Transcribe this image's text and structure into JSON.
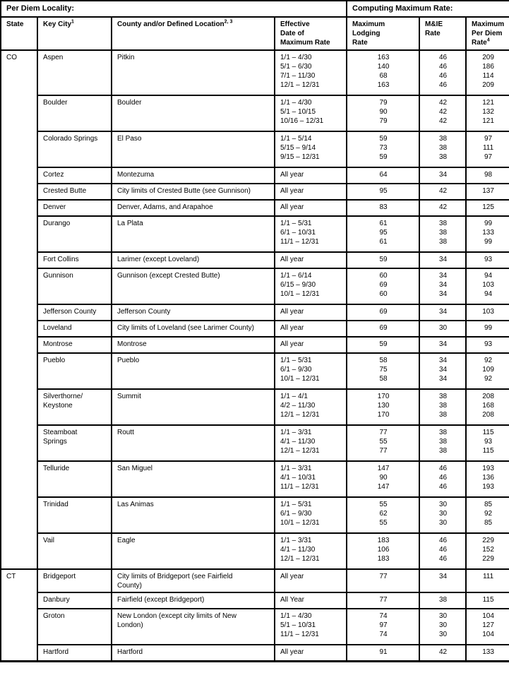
{
  "header": {
    "per_diem_locality": "Per Diem Locality:",
    "computing_maximum_rate": "Computing Maximum Rate:",
    "columns": [
      {
        "lines": [
          "State"
        ],
        "sup": null
      },
      {
        "lines": [
          "Key City"
        ],
        "sup": "1"
      },
      {
        "lines": [
          "County and/or Defined Location"
        ],
        "sup": "2, 3"
      },
      {
        "lines": [
          "Effective",
          "Date of",
          "Maximum Rate"
        ],
        "sup": null
      },
      {
        "lines": [
          "Maximum",
          "Lodging",
          "Rate"
        ],
        "sup": null
      },
      {
        "lines": [
          "M&IE",
          "Rate"
        ],
        "sup": null
      },
      {
        "lines": [
          "Maximum",
          "Per Diem",
          "Rate"
        ],
        "sup": "4"
      }
    ]
  },
  "groups": [
    {
      "state": "CO",
      "rows": [
        {
          "city": [
            "Aspen"
          ],
          "county": [
            "Pitkin"
          ],
          "dates": [
            "1/1 – 4/30",
            "5/1 – 6/30",
            "7/1 – 11/30",
            "12/1 – 12/31"
          ],
          "lodging": [
            163,
            140,
            68,
            163
          ],
          "mie": [
            46,
            46,
            46,
            46
          ],
          "per_diem": [
            209,
            186,
            114,
            209
          ]
        },
        {
          "city": [
            "Boulder"
          ],
          "county": [
            "Boulder"
          ],
          "dates": [
            "1/1 – 4/30",
            "5/1 – 10/15",
            "10/16 – 12/31"
          ],
          "lodging": [
            79,
            90,
            79
          ],
          "mie": [
            42,
            42,
            42
          ],
          "per_diem": [
            121,
            132,
            121
          ]
        },
        {
          "city": [
            "Colorado Springs"
          ],
          "county": [
            "El Paso"
          ],
          "dates": [
            "1/1 – 5/14",
            "5/15 – 9/14",
            "9/15 – 12/31"
          ],
          "lodging": [
            59,
            73,
            59
          ],
          "mie": [
            38,
            38,
            38
          ],
          "per_diem": [
            97,
            111,
            97
          ]
        },
        {
          "city": [
            "Cortez"
          ],
          "county": [
            "Montezuma"
          ],
          "dates": [
            "All year"
          ],
          "lodging": [
            64
          ],
          "mie": [
            34
          ],
          "per_diem": [
            98
          ]
        },
        {
          "city": [
            "Crested Butte"
          ],
          "county": [
            "City limits of Crested Butte (see Gunnison)"
          ],
          "dates": [
            "All year"
          ],
          "lodging": [
            95
          ],
          "mie": [
            42
          ],
          "per_diem": [
            137
          ]
        },
        {
          "city": [
            "Denver"
          ],
          "county": [
            "Denver, Adams, and Arapahoe"
          ],
          "dates": [
            "All year"
          ],
          "lodging": [
            83
          ],
          "mie": [
            42
          ],
          "per_diem": [
            125
          ]
        },
        {
          "city": [
            "Durango"
          ],
          "county": [
            "La Plata"
          ],
          "dates": [
            "1/1 – 5/31",
            "6/1 – 10/31",
            "11/1 – 12/31"
          ],
          "lodging": [
            61,
            95,
            61
          ],
          "mie": [
            38,
            38,
            38
          ],
          "per_diem": [
            99,
            133,
            99
          ]
        },
        {
          "city": [
            "Fort Collins"
          ],
          "county": [
            "Larimer (except Loveland)"
          ],
          "dates": [
            "All year"
          ],
          "lodging": [
            59
          ],
          "mie": [
            34
          ],
          "per_diem": [
            93
          ]
        },
        {
          "city": [
            "Gunnison"
          ],
          "county": [
            "Gunnison (except Crested Butte)"
          ],
          "dates": [
            "1/1 – 6/14",
            "6/15 – 9/30",
            "10/1 – 12/31"
          ],
          "lodging": [
            60,
            69,
            60
          ],
          "mie": [
            34,
            34,
            34
          ],
          "per_diem": [
            94,
            103,
            94
          ]
        },
        {
          "city": [
            "Jefferson County"
          ],
          "county": [
            "Jefferson County"
          ],
          "dates": [
            "All year"
          ],
          "lodging": [
            69
          ],
          "mie": [
            34
          ],
          "per_diem": [
            103
          ]
        },
        {
          "city": [
            "Loveland"
          ],
          "county": [
            "City limits of Loveland (see Larimer County)"
          ],
          "dates": [
            "All year"
          ],
          "lodging": [
            69
          ],
          "mie": [
            30
          ],
          "per_diem": [
            99
          ]
        },
        {
          "city": [
            "Montrose"
          ],
          "county": [
            "Montrose"
          ],
          "dates": [
            "All year"
          ],
          "lodging": [
            59
          ],
          "mie": [
            34
          ],
          "per_diem": [
            93
          ]
        },
        {
          "city": [
            "Pueblo"
          ],
          "county": [
            "Pueblo"
          ],
          "dates": [
            "1/1 – 5/31",
            "6/1 – 9/30",
            "10/1 – 12/31"
          ],
          "lodging": [
            58,
            75,
            58
          ],
          "mie": [
            34,
            34,
            34
          ],
          "per_diem": [
            92,
            109,
            92
          ]
        },
        {
          "city": [
            "Silverthorne/",
            "Keystone"
          ],
          "county": [
            "Summit"
          ],
          "dates": [
            "1/1 – 4/1",
            "4/2 – 11/30",
            "12/1 – 12/31"
          ],
          "lodging": [
            170,
            130,
            170
          ],
          "mie": [
            38,
            38,
            38
          ],
          "per_diem": [
            208,
            168,
            208
          ]
        },
        {
          "city": [
            "Steamboat",
            "Springs"
          ],
          "county": [
            "Routt"
          ],
          "dates": [
            "1/1 – 3/31",
            "4/1 – 11/30",
            "12/1 – 12/31"
          ],
          "lodging": [
            77,
            55,
            77
          ],
          "mie": [
            38,
            38,
            38
          ],
          "per_diem": [
            115,
            93,
            115
          ]
        },
        {
          "city": [
            "Telluride"
          ],
          "county": [
            "San Miguel"
          ],
          "dates": [
            "1/1 – 3/31",
            "4/1 – 10/31",
            "11/1 – 12/31"
          ],
          "lodging": [
            147,
            90,
            147
          ],
          "mie": [
            46,
            46,
            46
          ],
          "per_diem": [
            193,
            136,
            193
          ]
        },
        {
          "city": [
            "Trinidad"
          ],
          "county": [
            "Las Animas"
          ],
          "dates": [
            "1/1 – 5/31",
            "6/1 – 9/30",
            "10/1 – 12/31"
          ],
          "lodging": [
            55,
            62,
            55
          ],
          "mie": [
            30,
            30,
            30
          ],
          "per_diem": [
            85,
            92,
            85
          ]
        },
        {
          "city": [
            "Vail"
          ],
          "county": [
            "Eagle"
          ],
          "dates": [
            "1/1 – 3/31",
            "4/1 – 11/30",
            "12/1 – 12/31"
          ],
          "lodging": [
            183,
            106,
            183
          ],
          "mie": [
            46,
            46,
            46
          ],
          "per_diem": [
            229,
            152,
            229
          ]
        }
      ]
    },
    {
      "state": "CT",
      "rows": [
        {
          "city": [
            "Bridgeport"
          ],
          "county": [
            "City limits of Bridgeport (see Fairfield",
            "County)"
          ],
          "dates": [
            "All year"
          ],
          "lodging": [
            77
          ],
          "mie": [
            34
          ],
          "per_diem": [
            111
          ]
        },
        {
          "city": [
            "Danbury"
          ],
          "county": [
            "Fairfield (except Bridgeport)"
          ],
          "dates": [
            "All Year"
          ],
          "lodging": [
            77
          ],
          "mie": [
            38
          ],
          "per_diem": [
            115
          ]
        },
        {
          "city": [
            "Groton"
          ],
          "county": [
            "New London (except city limits of New",
            "London)"
          ],
          "dates": [
            "1/1 – 4/30",
            "5/1 – 10/31",
            "11/1 – 12/31"
          ],
          "lodging": [
            74,
            97,
            74
          ],
          "mie": [
            30,
            30,
            30
          ],
          "per_diem": [
            104,
            127,
            104
          ]
        },
        {
          "city": [
            "Hartford"
          ],
          "county": [
            "Hartford"
          ],
          "dates": [
            "All year"
          ],
          "lodging": [
            91
          ],
          "mie": [
            42
          ],
          "per_diem": [
            133
          ]
        }
      ]
    }
  ]
}
